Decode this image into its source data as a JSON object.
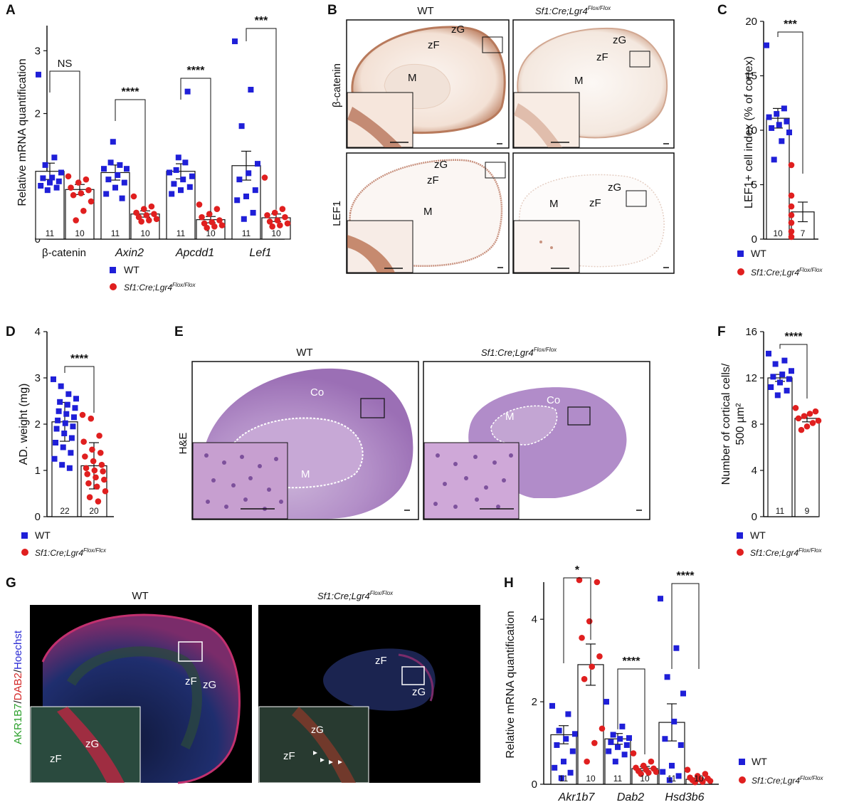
{
  "panels": {
    "A": "A",
    "B": "B",
    "C": "C",
    "D": "D",
    "E": "E",
    "F": "F",
    "G": "G",
    "H": "H"
  },
  "legend": {
    "wt": "WT",
    "mut": "Sf1:Cre;Lgr4",
    "mut_sup_flox": "Flox/Flox",
    "mut_sup_flox_typo": "Flox/Flcx"
  },
  "colors": {
    "wt": "#1f1fd8",
    "mut": "#e01f1f"
  },
  "images": {
    "b_wt": "WT",
    "b_mut": "Sf1:Cre;Lgr4",
    "b_sup": "Flox/Flox",
    "b_row1": "β-catenin",
    "b_row2": "LEF1",
    "e_wt": "WT",
    "e_mut": "Sf1:Cre;Lgr4",
    "e_sup": "Flox/Flox",
    "e_row": "H&E",
    "g_wt": "WT",
    "g_mut": "Sf1:Cre;Lgr4",
    "g_sup": "Flox/Flox",
    "g_stain_akr": "AKR1B7",
    "g_stain_dab": "DAB2",
    "g_stain_hoe": "Hoechst",
    "zG": "zG",
    "zF": "zF",
    "M": "M",
    "Co": "Co",
    "slash": "/"
  },
  "chart_data": [
    {
      "id": "A",
      "type": "bar",
      "ylabel": "Relative mRNA quantification",
      "ylim": [
        0,
        3.4
      ],
      "yticks": [
        0,
        1,
        2,
        3
      ],
      "categories": [
        "β-catenin",
        "Axin2",
        "Apcdd1",
        "Lef1"
      ],
      "series": [
        {
          "name": "WT",
          "values": [
            1.08,
            1.06,
            1.08,
            1.17
          ],
          "sem": [
            0.13,
            0.12,
            0.12,
            0.23
          ],
          "n": [
            "11",
            "11",
            "11",
            "11"
          ],
          "points": [
            [
              2.62,
              1.3,
              1.18,
              1.06,
              0.98,
              0.97,
              0.92,
              0.9,
              0.85,
              0.82,
              0.78
            ],
            [
              1.12,
              1.18,
              1.22,
              1.12,
              1.02,
              0.95,
              0.9,
              0.82,
              0.72,
              0.65,
              1.55
            ],
            [
              1.06,
              1.22,
              1.1,
              1.0,
              0.95,
              0.88,
              0.83,
              0.78,
              0.72,
              2.35,
              1.3
            ],
            [
              3.15,
              2.38,
              1.8,
              1.2,
              1.05,
              0.95,
              0.78,
              0.68,
              0.62,
              0.42,
              0.32
            ]
          ]
        },
        {
          "name": "Sf1:Cre;Lgr4 Flox/Flox",
          "values": [
            0.79,
            0.4,
            0.31,
            0.34
          ],
          "sem": [
            0.08,
            0.05,
            0.05,
            0.06
          ],
          "n": [
            "10",
            "10",
            "10",
            "10"
          ],
          "points": [
            [
              1.0,
              0.95,
              0.9,
              0.82,
              0.78,
              0.73,
              0.7,
              0.6,
              0.45,
              0.3
            ],
            [
              0.68,
              0.52,
              0.48,
              0.42,
              0.4,
              0.38,
              0.35,
              0.32,
              0.3,
              0.28
            ],
            [
              0.55,
              0.48,
              0.4,
              0.35,
              0.3,
              0.27,
              0.25,
              0.22,
              0.2,
              0.18
            ],
            [
              0.98,
              0.48,
              0.42,
              0.38,
              0.35,
              0.3,
              0.28,
              0.25,
              0.22,
              0.2
            ]
          ]
        }
      ],
      "annotations": [
        "NS",
        "****",
        "****",
        "***"
      ]
    },
    {
      "id": "C",
      "type": "bar",
      "ylabel": "LEF1+ cell index (% of cortex)",
      "ylim": [
        0,
        20
      ],
      "yticks": [
        0,
        5,
        10,
        15,
        20
      ],
      "categories": [
        "WT",
        "Sf1:Cre;Lgr4 Flox/Flox"
      ],
      "values": [
        11.1,
        2.5
      ],
      "sem": [
        0.9,
        0.9
      ],
      "n": [
        "10",
        "7"
      ],
      "points": [
        [
          17.8,
          12.0,
          11.5,
          11.2,
          10.8,
          10.5,
          10.2,
          9.8,
          9.0,
          7.3
        ],
        [
          6.8,
          4.0,
          3.0,
          2.2,
          1.5,
          0.7,
          0.2
        ]
      ],
      "annotations": [
        "***"
      ]
    },
    {
      "id": "D",
      "type": "bar",
      "ylabel": "AD. weight (mg)",
      "ylim": [
        0,
        4
      ],
      "yticks": [
        0,
        1,
        2,
        3,
        4
      ],
      "categories": [
        "WT",
        "Sf1:Cre;Lgr4 Flox/Flox"
      ],
      "values": [
        2.05,
        1.1
      ],
      "sem": [
        0.42,
        0.5
      ],
      "n": [
        "22",
        "20"
      ],
      "points": [
        [
          2.97,
          2.82,
          2.65,
          2.55,
          2.48,
          2.42,
          2.35,
          2.28,
          2.22,
          2.15,
          2.08,
          2.02,
          1.95,
          1.9,
          1.8,
          1.7,
          1.6,
          1.5,
          1.38,
          1.25,
          1.12,
          1.05
        ],
        [
          2.2,
          2.12,
          1.75,
          1.62,
          1.45,
          1.38,
          1.3,
          1.2,
          1.12,
          1.05,
          1.0,
          0.98,
          0.92,
          0.85,
          0.8,
          0.72,
          0.65,
          0.55,
          0.42,
          0.33
        ]
      ],
      "annotations": [
        "****"
      ]
    },
    {
      "id": "F",
      "type": "bar",
      "ylabel": "Number of cortical cells/ 500 µm²",
      "ylabel1": "Number of cortical cells/",
      "ylabel2": "500 µm²",
      "ylim": [
        0,
        16
      ],
      "yticks": [
        0,
        4,
        8,
        12,
        16
      ],
      "categories": [
        "WT",
        "Sf1:Cre;Lgr4 Flox/Flox"
      ],
      "values": [
        12.0,
        8.5
      ],
      "sem": [
        0.3,
        0.3
      ],
      "n": [
        "11",
        "9"
      ],
      "points": [
        [
          14.1,
          13.5,
          13.2,
          12.6,
          12.3,
          12.1,
          11.9,
          11.6,
          11.2,
          10.9,
          10.5
        ],
        [
          9.4,
          9.1,
          8.9,
          8.7,
          8.5,
          8.3,
          8.1,
          7.8,
          7.5
        ]
      ],
      "annotations": [
        "****"
      ]
    },
    {
      "id": "H",
      "type": "bar",
      "ylabel": "Relative mRNA quantification",
      "ylim": [
        0,
        4.9
      ],
      "yticks": [
        0,
        2,
        4
      ],
      "categories": [
        "Akr1b7",
        "Dab2",
        "Hsd3b6"
      ],
      "series": [
        {
          "name": "WT",
          "values": [
            1.2,
            1.1,
            1.5
          ],
          "sem": [
            0.22,
            0.13,
            0.45
          ],
          "n": [
            "11",
            "11",
            "11"
          ],
          "points": [
            [
              1.9,
              1.7,
              1.3,
              1.22,
              1.1,
              0.95,
              0.8,
              0.55,
              0.4,
              0.28,
              0.15
            ],
            [
              2.0,
              1.4,
              1.2,
              1.12,
              1.1,
              1.02,
              0.95,
              0.9,
              0.8,
              0.72,
              0.55
            ],
            [
              4.5,
              3.3,
              2.6,
              2.2,
              1.52,
              1.1,
              0.95,
              0.45,
              0.3,
              0.2,
              0.1
            ]
          ]
        },
        {
          "name": "Sf1:Cre;Lgr4 Flox/Flox",
          "values": [
            2.9,
            0.38,
            0.12
          ],
          "sem": [
            0.5,
            0.05,
            0.03
          ],
          "n": [
            "10",
            "10",
            "10"
          ],
          "points": [
            [
              4.95,
              4.9,
              3.95,
              3.55,
              3.1,
              2.85,
              2.55,
              1.35,
              1.0,
              0.55
            ],
            [
              0.75,
              0.55,
              0.45,
              0.4,
              0.38,
              0.35,
              0.32,
              0.3,
              0.28,
              0.25
            ],
            [
              0.35,
              0.25,
              0.2,
              0.16,
              0.14,
              0.12,
              0.1,
              0.08,
              0.06,
              0.05
            ]
          ]
        }
      ],
      "annotations": [
        "*",
        "****",
        "****"
      ]
    }
  ]
}
